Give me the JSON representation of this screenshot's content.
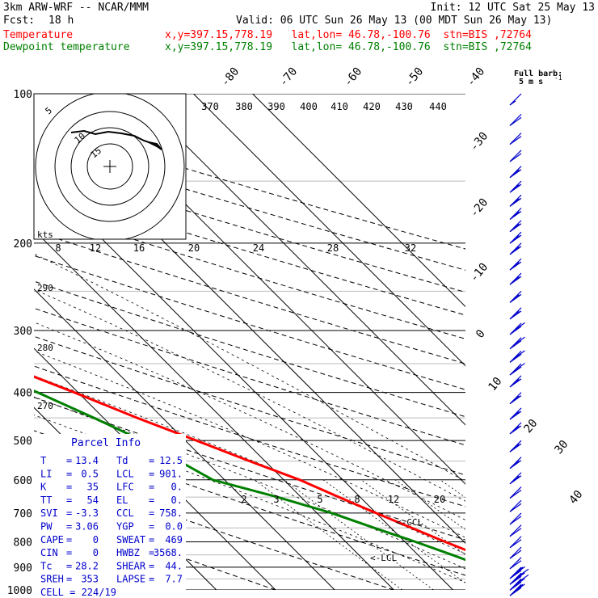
{
  "header": {
    "model": "3km ARW-WRF -- NCAR/MMM",
    "init": "Init: 12 UTC Sat 25 May 13",
    "fcst_label": "Fcst:",
    "fcst_value": "18 h",
    "valid": "Valid: 06 UTC Sun 26 May 13 (00 MDT Sun 26 May 13)",
    "temperature_label": "Temperature",
    "dewpoint_label": "Dewpoint temperature",
    "location_line": "x,y=397.15,778.19   lat,lon= 46.78,-100.76  stn=BIS ,72764"
  },
  "colors": {
    "temperature": "#ff0000",
    "dewpoint": "#008000",
    "wind": "#0000cc",
    "box_text": "#0000cc"
  },
  "chart_data": {
    "type": "line",
    "title": "",
    "xlabel": "",
    "ylabel": "",
    "pressure_ticks": [
      100,
      200,
      300,
      400,
      500,
      600,
      700,
      800,
      900,
      1000
    ],
    "isotherm_labels": [
      "-80",
      "-70",
      "-60",
      "-50",
      "-40",
      "-30",
      "-20",
      "-10",
      "0",
      "10",
      "20",
      "30",
      "40"
    ],
    "theta_labels": [
      "370",
      "380",
      "390",
      "400",
      "410",
      "420",
      "430",
      "440"
    ],
    "hodograph_speed_labels": [
      "8",
      "12",
      "16",
      "20",
      "24",
      "28",
      "32"
    ],
    "hodograph_unit": "kts",
    "theta_side_labels": [
      "290",
      "280",
      "270"
    ],
    "mixing_ratio_labels": [
      "2",
      "3",
      "5",
      "8",
      "12",
      "20"
    ],
    "hodo_ring_labels": [
      "5",
      "10",
      "15"
    ],
    "ccl_label": "<-CCL",
    "lcl_label": "<-LCL",
    "barb_legend": {
      "line1": "Full barb:",
      "line2": "5 m s",
      "exp": "-1"
    },
    "series": [
      {
        "name": "Temperature",
        "points": [
          [
            1000,
            12.5
          ],
          [
            975,
            12.8
          ],
          [
            950,
            14.0
          ],
          [
            925,
            13.4
          ],
          [
            900,
            13.0
          ],
          [
            875,
            12.0
          ],
          [
            850,
            10.2
          ],
          [
            800,
            6.8
          ],
          [
            750,
            3.5
          ],
          [
            700,
            0.0
          ],
          [
            650,
            -3.6
          ],
          [
            600,
            -7.3
          ],
          [
            550,
            -12.6
          ],
          [
            500,
            -18.1
          ],
          [
            450,
            -24.3
          ],
          [
            400,
            -30.6
          ],
          [
            350,
            -38.2
          ],
          [
            300,
            -46.7
          ],
          [
            250,
            -56.3
          ],
          [
            220,
            -60.7
          ],
          [
            200,
            -60.8
          ],
          [
            190,
            -60.3
          ],
          [
            170,
            -57.2
          ],
          [
            150,
            -55.8
          ],
          [
            130,
            -54.0
          ],
          [
            115,
            -52.6
          ],
          [
            100,
            -52.2
          ]
        ]
      },
      {
        "name": "Dewpoint temperature",
        "points": [
          [
            1000,
            10.8
          ],
          [
            975,
            10.8
          ],
          [
            950,
            10.5
          ],
          [
            925,
            9.8
          ],
          [
            900,
            8.8
          ],
          [
            875,
            7.6
          ],
          [
            850,
            5.8
          ],
          [
            800,
            1.8
          ],
          [
            750,
            -2.8
          ],
          [
            700,
            -7.5
          ],
          [
            650,
            -14.0
          ],
          [
            600,
            -22.0
          ],
          [
            550,
            -24.5
          ],
          [
            500,
            -27.3
          ],
          [
            450,
            -31.6
          ],
          [
            400,
            -36.8
          ],
          [
            350,
            -43.6
          ],
          [
            300,
            -51.8
          ],
          [
            250,
            -61.8
          ],
          [
            220,
            -67.4
          ],
          [
            200,
            -70.8
          ],
          [
            170,
            -75.5
          ],
          [
            150,
            -78.5
          ],
          [
            125,
            -82.5
          ],
          [
            110,
            -86.0
          ],
          [
            100,
            -88.5
          ]
        ]
      }
    ],
    "wind_profile_ms": [
      [
        100,
        5
      ],
      [
        110,
        10
      ],
      [
        120,
        10
      ],
      [
        130,
        10
      ],
      [
        140,
        15
      ],
      [
        150,
        15
      ],
      [
        160,
        15
      ],
      [
        170,
        15
      ],
      [
        180,
        15
      ],
      [
        190,
        15
      ],
      [
        200,
        15
      ],
      [
        215,
        15
      ],
      [
        230,
        15
      ],
      [
        250,
        15
      ],
      [
        270,
        15
      ],
      [
        290,
        20
      ],
      [
        310,
        20
      ],
      [
        330,
        20
      ],
      [
        350,
        20
      ],
      [
        370,
        15
      ],
      [
        400,
        15
      ],
      [
        430,
        15
      ],
      [
        460,
        15
      ],
      [
        500,
        15
      ],
      [
        540,
        15
      ],
      [
        580,
        15
      ],
      [
        620,
        10
      ],
      [
        660,
        10
      ],
      [
        700,
        10
      ],
      [
        740,
        10
      ],
      [
        780,
        10
      ],
      [
        820,
        10
      ],
      [
        860,
        10
      ],
      [
        900,
        25
      ],
      [
        925,
        30
      ],
      [
        950,
        30
      ],
      [
        975,
        25
      ]
    ]
  },
  "parcel_info": {
    "title": "Parcel Info",
    "rows": [
      {
        "l1": "T",
        "v1": "13.4",
        "l2": "Td",
        "v2": "12.5"
      },
      {
        "l1": "LI",
        "v1": "0.5",
        "l2": "LCL",
        "v2": "901."
      },
      {
        "l1": "K",
        "v1": "35",
        "l2": "LFC",
        "v2": "0."
      },
      {
        "l1": "TT",
        "v1": "54",
        "l2": "EL",
        "v2": "0."
      },
      {
        "l1": "SVI",
        "v1": "-3.3",
        "l2": "CCL",
        "v2": "758."
      },
      {
        "l1": "PW",
        "v1": "3.06",
        "l2": "YGP",
        "v2": "0.0"
      },
      {
        "l1": "CAPE",
        "v1": "0",
        "l2": "SWEAT",
        "v2": "469"
      },
      {
        "l1": "CIN",
        "v1": "0",
        "l2": "HWBZ",
        "v2": "3568."
      },
      {
        "l1": "Tc",
        "v1": "28.2",
        "l2": "SHEAR",
        "v2": "44."
      },
      {
        "l1": "SREH",
        "v1": "353",
        "l2": "LAPSE",
        "v2": "7.7"
      }
    ],
    "cell": "CELL = 224/19"
  }
}
